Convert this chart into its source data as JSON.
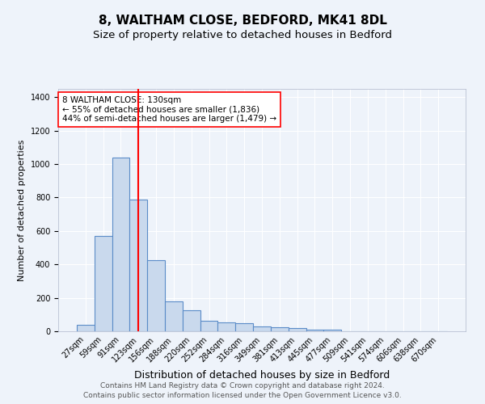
{
  "title1": "8, WALTHAM CLOSE, BEDFORD, MK41 8DL",
  "title2": "Size of property relative to detached houses in Bedford",
  "xlabel": "Distribution of detached houses by size in Bedford",
  "ylabel": "Number of detached properties",
  "categories": [
    "27sqm",
    "59sqm",
    "91sqm",
    "123sqm",
    "156sqm",
    "188sqm",
    "220sqm",
    "252sqm",
    "284sqm",
    "316sqm",
    "349sqm",
    "381sqm",
    "413sqm",
    "445sqm",
    "477sqm",
    "509sqm",
    "541sqm",
    "574sqm",
    "606sqm",
    "638sqm",
    "670sqm"
  ],
  "values": [
    40,
    570,
    1040,
    790,
    425,
    180,
    125,
    65,
    55,
    50,
    30,
    25,
    18,
    10,
    10,
    0,
    0,
    0,
    0,
    0,
    0
  ],
  "bar_color": "#c9d9ed",
  "bar_edge_color": "#5b8cc8",
  "vline_color": "red",
  "vline_x": 3.0,
  "annotation_text": "8 WALTHAM CLOSE: 130sqm\n← 55% of detached houses are smaller (1,836)\n44% of semi-detached houses are larger (1,479) →",
  "annotation_box_color": "white",
  "annotation_box_edge": "red",
  "footer1": "Contains HM Land Registry data © Crown copyright and database right 2024.",
  "footer2": "Contains public sector information licensed under the Open Government Licence v3.0.",
  "bg_color": "#eef3fa",
  "plot_bg_color": "#eef3fa",
  "ylim": [
    0,
    1450
  ],
  "yticks": [
    0,
    200,
    400,
    600,
    800,
    1000,
    1200,
    1400
  ],
  "grid_color": "white",
  "title1_fontsize": 11,
  "title2_fontsize": 9.5,
  "xlabel_fontsize": 9,
  "ylabel_fontsize": 8,
  "tick_fontsize": 7,
  "annot_fontsize": 7.5,
  "footer_fontsize": 6.5
}
